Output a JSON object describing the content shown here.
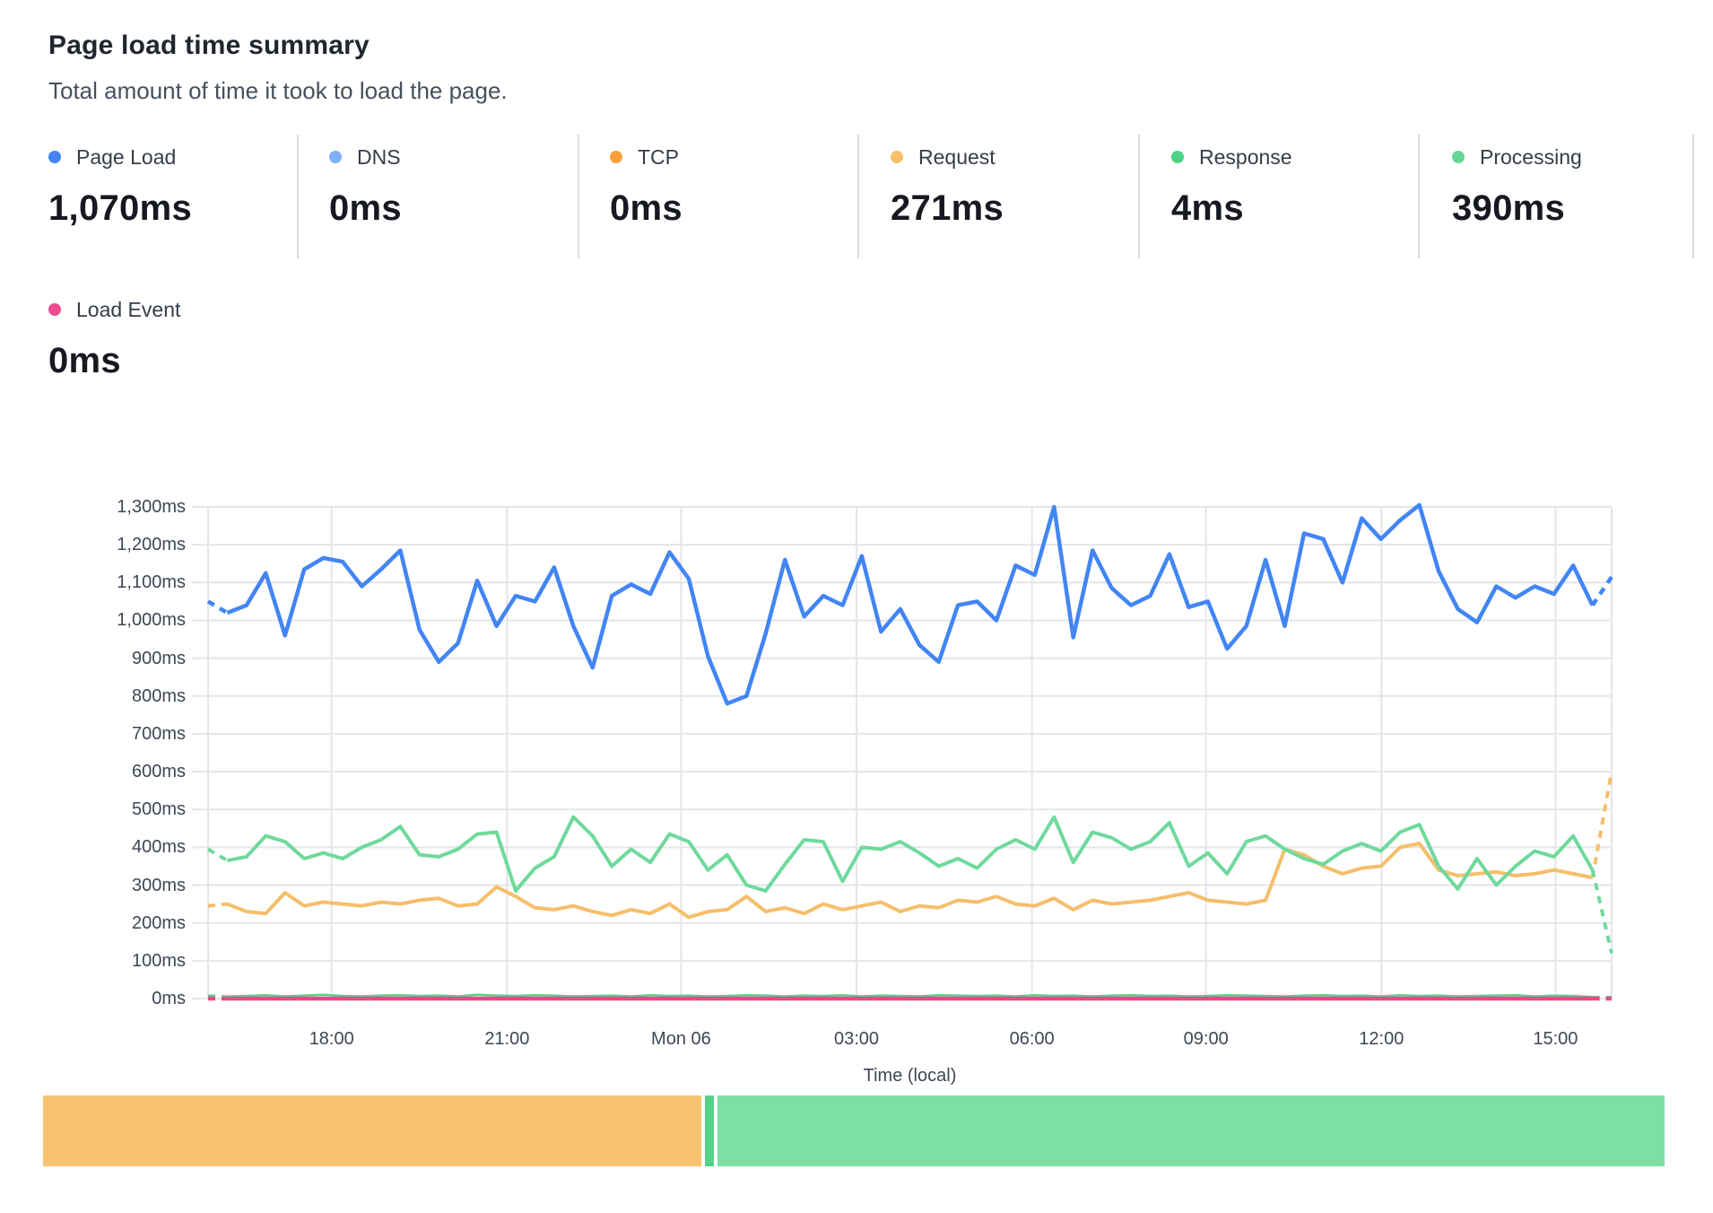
{
  "header": {
    "title": "Page load time summary",
    "subtitle": "Total amount of time it took to load the page."
  },
  "metrics": {
    "row1": [
      {
        "label": "Page Load",
        "value": "1,070ms",
        "dot_color": "#4285F4"
      },
      {
        "label": "DNS",
        "value": "0ms",
        "dot_color": "#7FAFF8"
      },
      {
        "label": "TCP",
        "value": "0ms",
        "dot_color": "#F7A13C"
      },
      {
        "label": "Request",
        "value": "271ms",
        "dot_color": "#F7BE6D"
      },
      {
        "label": "Response",
        "value": "4ms",
        "dot_color": "#4ED189"
      },
      {
        "label": "Processing",
        "value": "390ms",
        "dot_color": "#66D697"
      }
    ],
    "row2": [
      {
        "label": "Load Event",
        "value": "0ms",
        "dot_color": "#EE4C8C"
      }
    ]
  },
  "chart_data": {
    "type": "line",
    "title": "Page load time summary",
    "xlabel": "Time (local)",
    "ylabel": "",
    "ylim": [
      0,
      1300
    ],
    "grid": true,
    "point_interval_minutes": 20,
    "x_span": "approx Sun 15:50 through Mon 16:10 (24h)",
    "dashed_first_and_last_segment": true,
    "y_ticks": [
      "0ms",
      "100ms",
      "200ms",
      "300ms",
      "400ms",
      "500ms",
      "600ms",
      "700ms",
      "800ms",
      "900ms",
      "1,000ms",
      "1,100ms",
      "1,200ms",
      "1,300ms"
    ],
    "x_ticks": [
      {
        "label": "18:00",
        "pos": 0.088
      },
      {
        "label": "21:00",
        "pos": 0.213
      },
      {
        "label": "Mon 06",
        "pos": 0.337
      },
      {
        "label": "03:00",
        "pos": 0.462
      },
      {
        "label": "06:00",
        "pos": 0.587
      },
      {
        "label": "09:00",
        "pos": 0.711
      },
      {
        "label": "12:00",
        "pos": 0.836
      },
      {
        "label": "15:00",
        "pos": 0.96
      }
    ],
    "series": [
      {
        "name": "DNS",
        "color": "#7FAFF8",
        "width": 3,
        "values": [
          0,
          0,
          0,
          0,
          0,
          0,
          0,
          0,
          0,
          0,
          0,
          0,
          0,
          0,
          0,
          0,
          0,
          0,
          0,
          0,
          0,
          0,
          0,
          0,
          0,
          0,
          0,
          0,
          0,
          0,
          0,
          0,
          0,
          0,
          0,
          0,
          0,
          0,
          0,
          0,
          0,
          0,
          0,
          0,
          0,
          0,
          0,
          0,
          0,
          0,
          0,
          0,
          0,
          0,
          0,
          0,
          0,
          0,
          0,
          0,
          0,
          0,
          0,
          0,
          0,
          0,
          0,
          0,
          0,
          0,
          0,
          0,
          0,
          0
        ]
      },
      {
        "name": "TCP",
        "color": "#F7A13C",
        "width": 3,
        "values": [
          0,
          0,
          0,
          0,
          0,
          0,
          0,
          0,
          0,
          0,
          0,
          0,
          0,
          0,
          0,
          0,
          0,
          0,
          0,
          0,
          0,
          0,
          0,
          0,
          0,
          0,
          0,
          0,
          0,
          0,
          0,
          0,
          0,
          0,
          0,
          0,
          0,
          0,
          0,
          0,
          0,
          0,
          0,
          0,
          0,
          0,
          0,
          0,
          0,
          0,
          0,
          0,
          0,
          0,
          0,
          0,
          0,
          0,
          0,
          0,
          0,
          0,
          0,
          0,
          0,
          0,
          0,
          0,
          0,
          0,
          0,
          0,
          0,
          0
        ]
      },
      {
        "name": "Request",
        "color": "#F6BE6A",
        "width": 4,
        "values": [
          245,
          250,
          230,
          225,
          280,
          245,
          255,
          250,
          245,
          255,
          250,
          260,
          265,
          245,
          250,
          295,
          270,
          240,
          235,
          245,
          230,
          220,
          235,
          225,
          250,
          215,
          230,
          235,
          270,
          230,
          240,
          225,
          250,
          235,
          245,
          255,
          230,
          245,
          240,
          260,
          255,
          270,
          250,
          245,
          265,
          235,
          260,
          250,
          255,
          260,
          270,
          280,
          260,
          255,
          250,
          260,
          395,
          380,
          350,
          330,
          345,
          350,
          400,
          410,
          340,
          325,
          330,
          335,
          325,
          330,
          340,
          330,
          320,
          600
        ]
      },
      {
        "name": "Processing",
        "color": "#6FD99C",
        "width": 4,
        "values": [
          395,
          365,
          375,
          430,
          415,
          370,
          385,
          370,
          400,
          420,
          455,
          380,
          375,
          395,
          435,
          440,
          285,
          345,
          375,
          480,
          430,
          350,
          395,
          360,
          435,
          415,
          340,
          380,
          300,
          285,
          355,
          420,
          415,
          310,
          400,
          395,
          415,
          385,
          350,
          370,
          345,
          395,
          420,
          395,
          480,
          360,
          440,
          425,
          395,
          415,
          465,
          350,
          385,
          330,
          415,
          430,
          395,
          370,
          355,
          390,
          410,
          390,
          440,
          460,
          350,
          290,
          370,
          300,
          350,
          390,
          375,
          430,
          340,
          120
        ]
      },
      {
        "name": "Response",
        "color": "#57D289",
        "width": 2.5,
        "values": [
          8,
          6,
          7,
          9,
          6,
          8,
          10,
          7,
          6,
          8,
          9,
          7,
          8,
          6,
          10,
          8,
          7,
          9,
          8,
          6,
          7,
          8,
          6,
          9,
          7,
          8,
          6,
          7,
          9,
          8,
          6,
          8,
          7,
          9,
          6,
          8,
          7,
          6,
          9,
          8,
          7,
          8,
          6,
          9,
          7,
          8,
          6,
          8,
          9,
          7,
          8,
          6,
          7,
          9,
          8,
          7,
          6,
          8,
          9,
          7,
          8,
          6,
          9,
          7,
          8,
          6,
          7,
          8,
          9,
          6,
          8,
          7,
          4,
          4
        ]
      },
      {
        "name": "Load Event",
        "color": "#E9498C",
        "width": 4.5,
        "values": [
          0,
          0,
          0,
          0,
          0,
          0,
          0,
          0,
          0,
          0,
          0,
          0,
          0,
          0,
          0,
          0,
          0,
          0,
          0,
          0,
          0,
          0,
          0,
          0,
          0,
          0,
          0,
          0,
          0,
          0,
          0,
          0,
          0,
          0,
          0,
          0,
          0,
          0,
          0,
          0,
          0,
          0,
          0,
          0,
          0,
          0,
          0,
          0,
          0,
          0,
          0,
          0,
          0,
          0,
          0,
          0,
          0,
          0,
          0,
          0,
          0,
          0,
          0,
          0,
          0,
          0,
          0,
          0,
          0,
          0,
          0,
          0,
          0,
          0
        ]
      },
      {
        "name": "Page Load",
        "color": "#4285F4",
        "width": 4.5,
        "values": [
          1050,
          1020,
          1040,
          1125,
          960,
          1135,
          1165,
          1155,
          1090,
          1135,
          1185,
          975,
          890,
          940,
          1105,
          985,
          1065,
          1050,
          1140,
          985,
          875,
          1065,
          1095,
          1070,
          1180,
          1110,
          905,
          780,
          800,
          965,
          1160,
          1010,
          1065,
          1040,
          1170,
          970,
          1030,
          935,
          890,
          1040,
          1050,
          1000,
          1145,
          1120,
          1300,
          955,
          1185,
          1085,
          1040,
          1065,
          1175,
          1035,
          1050,
          925,
          985,
          1160,
          985,
          1230,
          1215,
          1100,
          1270,
          1215,
          1265,
          1305,
          1130,
          1030,
          995,
          1090,
          1060,
          1090,
          1070,
          1145,
          1040,
          1115
        ]
      }
    ]
  },
  "breakdown_bar": {
    "segments": [
      {
        "name": "Request",
        "color": "#F7C373",
        "value": 271
      },
      {
        "name": "Response",
        "color": "#55D287",
        "value": 4
      },
      {
        "name": "Processing",
        "color": "#7DDFA4",
        "value": 390
      }
    ]
  },
  "colors": {
    "gridline": "#e3e5e9",
    "divider": "#d9dce0",
    "axis_text": "#3e4753"
  }
}
